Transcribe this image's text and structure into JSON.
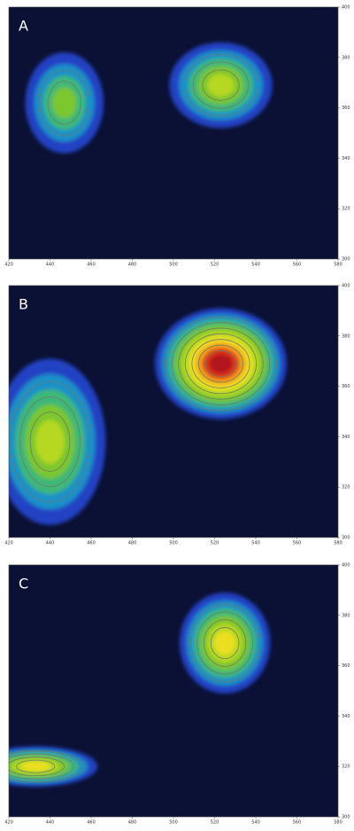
{
  "chart_data": [
    {
      "type": "contour",
      "label": "A",
      "xlim": [
        420,
        580
      ],
      "ylim": [
        300,
        400
      ],
      "xticks": [
        420,
        440,
        460,
        480,
        500,
        520,
        540,
        560,
        580
      ],
      "yticks": [
        300,
        320,
        340,
        360,
        380,
        400
      ],
      "x": [
        447,
        523
      ],
      "values": [
        362,
        369
      ],
      "x_spread": [
        19,
        25
      ],
      "y_spread": [
        20,
        17
      ],
      "intensity": [
        4,
        5
      ],
      "colors": [
        "#2243c4",
        "#1e90c8",
        "#3cb878",
        "#7cc62e",
        "#b6d822",
        "#ecdf22",
        "#f2a61e",
        "#e33a12",
        "#b3141a"
      ],
      "background": "#0b1134"
    },
    {
      "type": "contour",
      "label": "B",
      "xlim": [
        420,
        580
      ],
      "ylim": [
        300,
        400
      ],
      "xticks": [
        420,
        440,
        460,
        480,
        500,
        520,
        540,
        560,
        580
      ],
      "yticks": [
        300,
        320,
        340,
        360,
        380,
        400
      ],
      "x": [
        440,
        523
      ],
      "values": [
        338,
        369
      ],
      "x_spread": [
        27,
        32
      ],
      "y_spread": [
        33,
        22
      ],
      "intensity": [
        5,
        9
      ],
      "colors": [
        "#2243c4",
        "#1e90c8",
        "#3cb878",
        "#7cc62e",
        "#b6d822",
        "#ecdf22",
        "#f2a61e",
        "#e33a12",
        "#b3141a"
      ],
      "background": "#0b1134"
    },
    {
      "type": "contour",
      "label": "C",
      "xlim": [
        420,
        580
      ],
      "ylim": [
        300,
        400
      ],
      "xticks": [
        420,
        440,
        460,
        480,
        500,
        520,
        540,
        560,
        580
      ],
      "yticks": [
        300,
        320,
        340,
        360,
        380,
        400
      ],
      "x": [
        433,
        525
      ],
      "values": [
        320,
        369
      ],
      "x_spread": [
        30,
        22
      ],
      "y_spread": [
        8,
        20
      ],
      "intensity": [
        6,
        6
      ],
      "colors": [
        "#2243c4",
        "#1e90c8",
        "#3cb878",
        "#7cc62e",
        "#b6d822",
        "#ecdf22",
        "#f2a61e",
        "#e33a12",
        "#b3141a"
      ],
      "background": "#0b1134"
    }
  ]
}
